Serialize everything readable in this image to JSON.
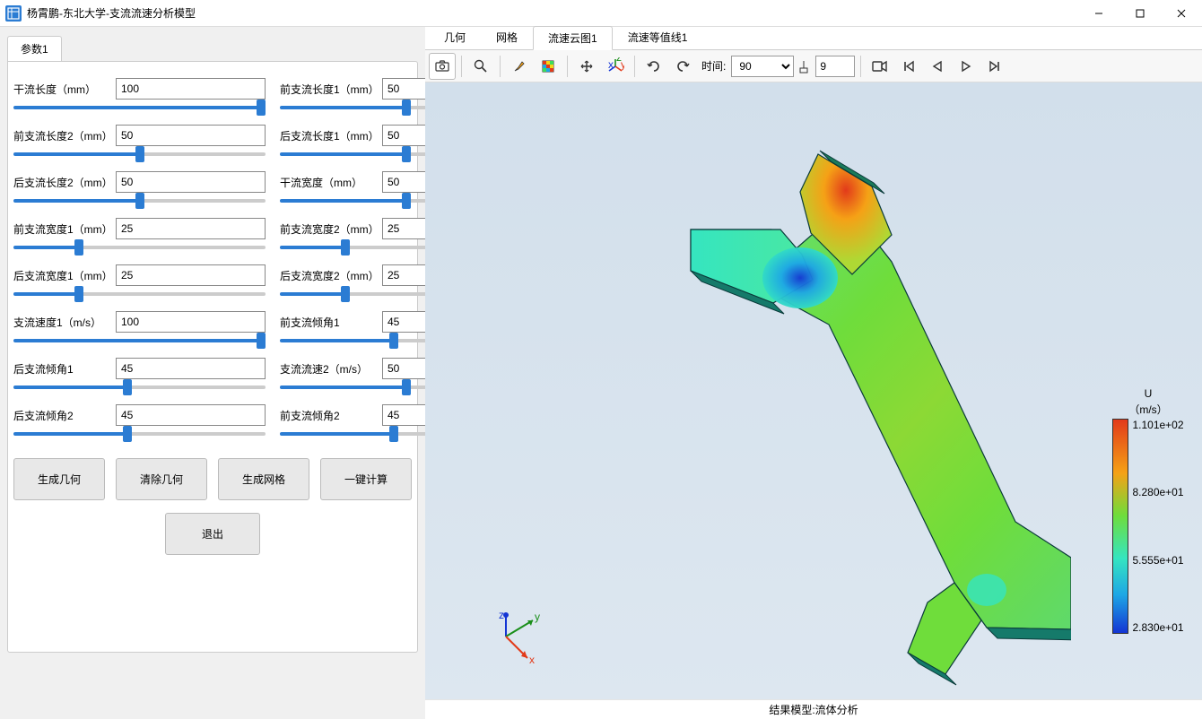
{
  "window": {
    "title": "杨霄鹏-东北大学-支流流速分析模型"
  },
  "left_panel": {
    "tab_label": "参数1",
    "params_left": [
      {
        "label": "干流长度（mm）",
        "value": "100",
        "pct": 100
      },
      {
        "label": "前支流长度2（mm）",
        "value": "50",
        "pct": 50
      },
      {
        "label": "后支流长度2（mm）",
        "value": "50",
        "pct": 50
      },
      {
        "label": "前支流宽度1（mm）",
        "value": "25",
        "pct": 25
      },
      {
        "label": "后支流宽度1（mm）",
        "value": "25",
        "pct": 25
      },
      {
        "label": "支流速度1（m/s）",
        "value": "100",
        "pct": 100
      },
      {
        "label": "后支流倾角1",
        "value": "45",
        "pct": 45
      },
      {
        "label": "后支流倾角2",
        "value": "45",
        "pct": 45
      }
    ],
    "params_right": [
      {
        "label": "前支流长度1（mm）",
        "value": "50",
        "pct": 50
      },
      {
        "label": "后支流长度1（mm）",
        "value": "50",
        "pct": 50
      },
      {
        "label": "干流宽度（mm）",
        "value": "50",
        "pct": 50
      },
      {
        "label": "前支流宽度2（mm）",
        "value": "25",
        "pct": 25
      },
      {
        "label": "后支流宽度2（mm）",
        "value": "25",
        "pct": 25
      },
      {
        "label": "前支流倾角1",
        "value": "45",
        "pct": 45
      },
      {
        "label": "支流流速2（m/s）",
        "value": "50",
        "pct": 50
      },
      {
        "label": "前支流倾角2",
        "value": "45",
        "pct": 45
      }
    ],
    "buttons": {
      "gen_geom": "生成几何",
      "clear_geom": "清除几何",
      "gen_mesh": "生成网格",
      "one_click": "一键计算",
      "exit": "退出"
    }
  },
  "right_panel": {
    "tabs": [
      "几何",
      "网格",
      "流速云图1",
      "流速等值线1"
    ],
    "active_tab": 2,
    "toolbar": {
      "time_label": "时间:",
      "time_select": "90",
      "frame_input": "9"
    },
    "footer": "结果模型:流体分析",
    "legend": {
      "title_line1": "U",
      "title_line2": "（m/s）",
      "ticks": [
        "1.101e+02",
        "8.280e+01",
        "5.555e+01",
        "2.830e+01"
      ]
    },
    "axes": {
      "x": "x",
      "y": "y",
      "z": "z"
    }
  }
}
